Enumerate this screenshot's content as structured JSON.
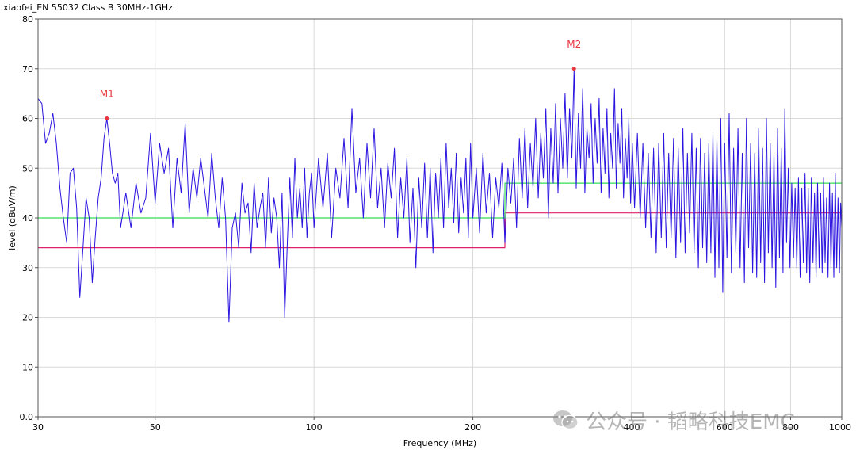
{
  "chart_data": {
    "type": "line",
    "title": "xiaofei_EN 55032 Class B 30MHz-1GHz",
    "xlabel": "Frequency (MHz)",
    "ylabel": "level (dBuV/m)",
    "x_scale": "log",
    "xlim": [
      30,
      1000
    ],
    "ylim": [
      0,
      80
    ],
    "x_ticks": [
      30,
      50,
      100,
      200,
      400,
      600,
      800,
      1000
    ],
    "x_tick_labels": [
      "30",
      "50",
      "100",
      "200",
      "400",
      "600",
      "800",
      "1000"
    ],
    "y_ticks": [
      0,
      10,
      20,
      30,
      40,
      50,
      60,
      70,
      80
    ],
    "y_tick_labels": [
      "0.0",
      "10",
      "20",
      "30",
      "40",
      "50",
      "60",
      "70",
      "80"
    ],
    "grid": true,
    "series": [
      {
        "color": "#2a14e0",
        "points": [
          [
            30,
            64
          ],
          [
            30.5,
            63
          ],
          [
            31,
            55
          ],
          [
            31.5,
            57
          ],
          [
            32,
            61
          ],
          [
            32.5,
            55
          ],
          [
            33,
            46
          ],
          [
            33.5,
            40
          ],
          [
            34,
            35
          ],
          [
            34.5,
            49
          ],
          [
            35,
            50
          ],
          [
            35.5,
            42
          ],
          [
            36,
            24
          ],
          [
            36.5,
            34
          ],
          [
            37,
            44
          ],
          [
            37.5,
            40
          ],
          [
            38,
            27
          ],
          [
            38.5,
            36
          ],
          [
            39,
            44
          ],
          [
            39.5,
            48
          ],
          [
            40,
            56
          ],
          [
            40.5,
            60
          ],
          [
            41,
            55
          ],
          [
            41.5,
            49
          ],
          [
            42,
            47
          ],
          [
            42.5,
            49
          ],
          [
            43,
            38
          ],
          [
            44,
            45
          ],
          [
            45,
            38
          ],
          [
            46,
            47
          ],
          [
            47,
            41
          ],
          [
            48,
            44
          ],
          [
            49,
            57
          ],
          [
            50,
            43
          ],
          [
            51,
            55
          ],
          [
            52,
            49
          ],
          [
            53,
            54
          ],
          [
            54,
            38
          ],
          [
            55,
            52
          ],
          [
            56,
            45
          ],
          [
            57,
            59
          ],
          [
            58,
            41
          ],
          [
            59,
            50
          ],
          [
            60,
            44
          ],
          [
            61,
            52
          ],
          [
            62,
            46
          ],
          [
            63,
            40
          ],
          [
            64,
            53
          ],
          [
            65,
            44
          ],
          [
            66,
            38
          ],
          [
            67,
            48
          ],
          [
            68,
            40
          ],
          [
            69,
            19
          ],
          [
            70,
            38
          ],
          [
            71,
            41
          ],
          [
            72,
            34
          ],
          [
            73,
            47
          ],
          [
            74,
            41
          ],
          [
            75,
            43
          ],
          [
            76,
            33
          ],
          [
            77,
            47
          ],
          [
            78,
            38
          ],
          [
            79,
            42
          ],
          [
            80,
            45
          ],
          [
            81,
            34
          ],
          [
            82,
            48
          ],
          [
            83,
            37
          ],
          [
            84,
            44
          ],
          [
            85,
            40
          ],
          [
            86,
            30
          ],
          [
            87,
            45
          ],
          [
            88,
            20
          ],
          [
            89,
            35
          ],
          [
            90,
            48
          ],
          [
            91,
            36
          ],
          [
            92,
            52
          ],
          [
            93,
            40
          ],
          [
            94,
            46
          ],
          [
            95,
            38
          ],
          [
            96,
            50
          ],
          [
            97,
            36
          ],
          [
            98,
            45
          ],
          [
            99,
            49
          ],
          [
            100,
            38
          ],
          [
            102,
            52
          ],
          [
            104,
            42
          ],
          [
            106,
            53
          ],
          [
            108,
            36
          ],
          [
            110,
            50
          ],
          [
            112,
            44
          ],
          [
            114,
            56
          ],
          [
            116,
            42
          ],
          [
            118,
            62
          ],
          [
            120,
            45
          ],
          [
            122,
            52
          ],
          [
            124,
            40
          ],
          [
            126,
            55
          ],
          [
            128,
            44
          ],
          [
            130,
            58
          ],
          [
            132,
            42
          ],
          [
            134,
            50
          ],
          [
            136,
            38
          ],
          [
            138,
            51
          ],
          [
            140,
            44
          ],
          [
            142,
            54
          ],
          [
            144,
            36
          ],
          [
            146,
            48
          ],
          [
            148,
            40
          ],
          [
            150,
            52
          ],
          [
            152,
            35
          ],
          [
            154,
            46
          ],
          [
            156,
            30
          ],
          [
            158,
            48
          ],
          [
            160,
            38
          ],
          [
            162,
            51
          ],
          [
            164,
            36
          ],
          [
            166,
            50
          ],
          [
            168,
            33
          ],
          [
            170,
            49
          ],
          [
            172,
            40
          ],
          [
            174,
            52
          ],
          [
            176,
            38
          ],
          [
            178,
            55
          ],
          [
            180,
            42
          ],
          [
            182,
            50
          ],
          [
            184,
            39
          ],
          [
            186,
            53
          ],
          [
            188,
            37
          ],
          [
            190,
            48
          ],
          [
            192,
            41
          ],
          [
            194,
            52
          ],
          [
            196,
            36
          ],
          [
            198,
            55
          ],
          [
            200,
            40
          ],
          [
            203,
            50
          ],
          [
            206,
            37
          ],
          [
            209,
            53
          ],
          [
            212,
            41
          ],
          [
            215,
            49
          ],
          [
            218,
            36
          ],
          [
            221,
            48
          ],
          [
            224,
            42
          ],
          [
            227,
            51
          ],
          [
            230,
            35
          ],
          [
            233,
            50
          ],
          [
            236,
            43
          ],
          [
            239,
            52
          ],
          [
            242,
            38
          ],
          [
            245,
            56
          ],
          [
            248,
            44
          ],
          [
            251,
            58
          ],
          [
            254,
            42
          ],
          [
            257,
            55
          ],
          [
            260,
            46
          ],
          [
            263,
            60
          ],
          [
            266,
            44
          ],
          [
            269,
            57
          ],
          [
            272,
            48
          ],
          [
            275,
            62
          ],
          [
            278,
            40
          ],
          [
            281,
            58
          ],
          [
            284,
            47
          ],
          [
            287,
            63
          ],
          [
            290,
            45
          ],
          [
            293,
            60
          ],
          [
            296,
            50
          ],
          [
            299,
            65
          ],
          [
            302,
            48
          ],
          [
            305,
            62
          ],
          [
            308,
            52
          ],
          [
            311,
            70
          ],
          [
            314,
            46
          ],
          [
            317,
            61
          ],
          [
            320,
            50
          ],
          [
            323,
            66
          ],
          [
            326,
            45
          ],
          [
            329,
            58
          ],
          [
            332,
            52
          ],
          [
            335,
            63
          ],
          [
            338,
            47
          ],
          [
            341,
            60
          ],
          [
            344,
            51
          ],
          [
            347,
            64
          ],
          [
            350,
            45
          ],
          [
            353,
            58
          ],
          [
            356,
            49
          ],
          [
            359,
            62
          ],
          [
            362,
            44
          ],
          [
            365,
            57
          ],
          [
            368,
            50
          ],
          [
            371,
            66
          ],
          [
            374,
            46
          ],
          [
            377,
            59
          ],
          [
            380,
            51
          ],
          [
            383,
            62
          ],
          [
            386,
            44
          ],
          [
            389,
            56
          ],
          [
            392,
            48
          ],
          [
            395,
            60
          ],
          [
            398,
            43
          ],
          [
            401,
            55
          ],
          [
            405,
            42
          ],
          [
            410,
            57
          ],
          [
            415,
            40
          ],
          [
            420,
            55
          ],
          [
            425,
            38
          ],
          [
            430,
            53
          ],
          [
            435,
            36
          ],
          [
            440,
            54
          ],
          [
            445,
            33
          ],
          [
            450,
            55
          ],
          [
            455,
            36
          ],
          [
            460,
            57
          ],
          [
            465,
            34
          ],
          [
            470,
            53
          ],
          [
            475,
            36
          ],
          [
            480,
            56
          ],
          [
            485,
            32
          ],
          [
            490,
            54
          ],
          [
            495,
            35
          ],
          [
            500,
            58
          ],
          [
            505,
            33
          ],
          [
            510,
            53
          ],
          [
            515,
            37
          ],
          [
            520,
            57
          ],
          [
            525,
            33
          ],
          [
            530,
            54
          ],
          [
            535,
            30
          ],
          [
            540,
            56
          ],
          [
            545,
            34
          ],
          [
            550,
            53
          ],
          [
            555,
            31
          ],
          [
            560,
            55
          ],
          [
            565,
            33
          ],
          [
            570,
            57
          ],
          [
            575,
            28
          ],
          [
            580,
            56
          ],
          [
            585,
            30
          ],
          [
            590,
            60
          ],
          [
            595,
            25
          ],
          [
            600,
            55
          ],
          [
            606,
            32
          ],
          [
            612,
            61
          ],
          [
            618,
            29
          ],
          [
            624,
            54
          ],
          [
            630,
            33
          ],
          [
            636,
            58
          ],
          [
            642,
            30
          ],
          [
            648,
            53
          ],
          [
            654,
            27
          ],
          [
            660,
            60
          ],
          [
            666,
            34
          ],
          [
            672,
            55
          ],
          [
            678,
            29
          ],
          [
            684,
            53
          ],
          [
            690,
            28
          ],
          [
            696,
            58
          ],
          [
            702,
            31
          ],
          [
            708,
            54
          ],
          [
            714,
            27
          ],
          [
            720,
            60
          ],
          [
            726,
            33
          ],
          [
            732,
            55
          ],
          [
            738,
            30
          ],
          [
            744,
            53
          ],
          [
            750,
            26
          ],
          [
            756,
            58
          ],
          [
            762,
            32
          ],
          [
            768,
            54
          ],
          [
            774,
            29
          ],
          [
            780,
            62
          ],
          [
            786,
            35
          ],
          [
            792,
            50
          ],
          [
            798,
            30
          ],
          [
            804,
            47
          ],
          [
            810,
            32
          ],
          [
            816,
            46
          ],
          [
            822,
            30
          ],
          [
            828,
            48
          ],
          [
            834,
            28
          ],
          [
            840,
            46
          ],
          [
            846,
            31
          ],
          [
            852,
            49
          ],
          [
            858,
            29
          ],
          [
            864,
            46
          ],
          [
            870,
            27
          ],
          [
            876,
            48
          ],
          [
            882,
            31
          ],
          [
            888,
            45
          ],
          [
            894,
            28
          ],
          [
            900,
            47
          ],
          [
            906,
            30
          ],
          [
            912,
            45
          ],
          [
            918,
            29
          ],
          [
            924,
            48
          ],
          [
            930,
            31
          ],
          [
            936,
            44
          ],
          [
            942,
            28
          ],
          [
            948,
            47
          ],
          [
            954,
            30
          ],
          [
            960,
            45
          ],
          [
            966,
            28
          ],
          [
            972,
            49
          ],
          [
            978,
            30
          ],
          [
            984,
            44
          ],
          [
            990,
            29
          ],
          [
            995,
            43
          ],
          [
            1000,
            38
          ]
        ]
      },
      {
        "color": "#e0206a",
        "points": [
          [
            30,
            34
          ],
          [
            230,
            34
          ],
          [
            230,
            41
          ],
          [
            1000,
            41
          ]
        ]
      },
      {
        "color": "#33dd55",
        "points": [
          [
            30,
            40
          ],
          [
            230,
            40
          ],
          [
            230,
            47
          ],
          [
            1000,
            47
          ]
        ]
      }
    ],
    "markers": [
      {
        "label": "M1",
        "x": 40.5,
        "y": 60
      },
      {
        "label": "M2",
        "x": 311,
        "y": 70
      }
    ]
  },
  "watermark": {
    "text": "公众号 · 韬略科技EMC"
  }
}
